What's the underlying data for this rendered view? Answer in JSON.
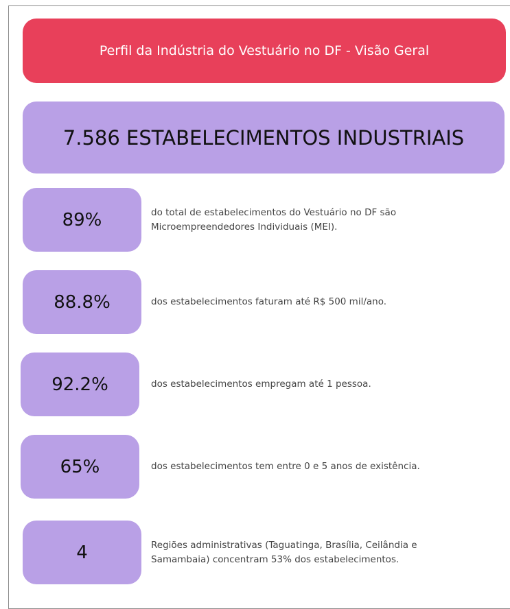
{
  "header": {
    "title": "Perfil da Indústria do Vestuário no DF - Visão Geral"
  },
  "headline": "7.586 ESTABELECIMENTOS INDUSTRIAIS",
  "stats": [
    {
      "value": "89%",
      "text": "do total de estabelecimentos do Vestuário no DF são Microempreendedores Individuais (MEI)."
    },
    {
      "value": "88.8%",
      "text": "dos estabelecimentos faturam até R$ 500 mil/ano."
    },
    {
      "value": "92.2%",
      "text": "dos estabelecimentos empregam até 1 pessoa."
    },
    {
      "value": "65%",
      "text": "dos estabelecimentos tem entre 0 e 5 anos de existência."
    },
    {
      "value": "4",
      "text": "Regiões administrativas (Taguatinga, Brasília, Ceilândia e Samambaia) concentram 53% dos estabelecimentos."
    }
  ]
}
